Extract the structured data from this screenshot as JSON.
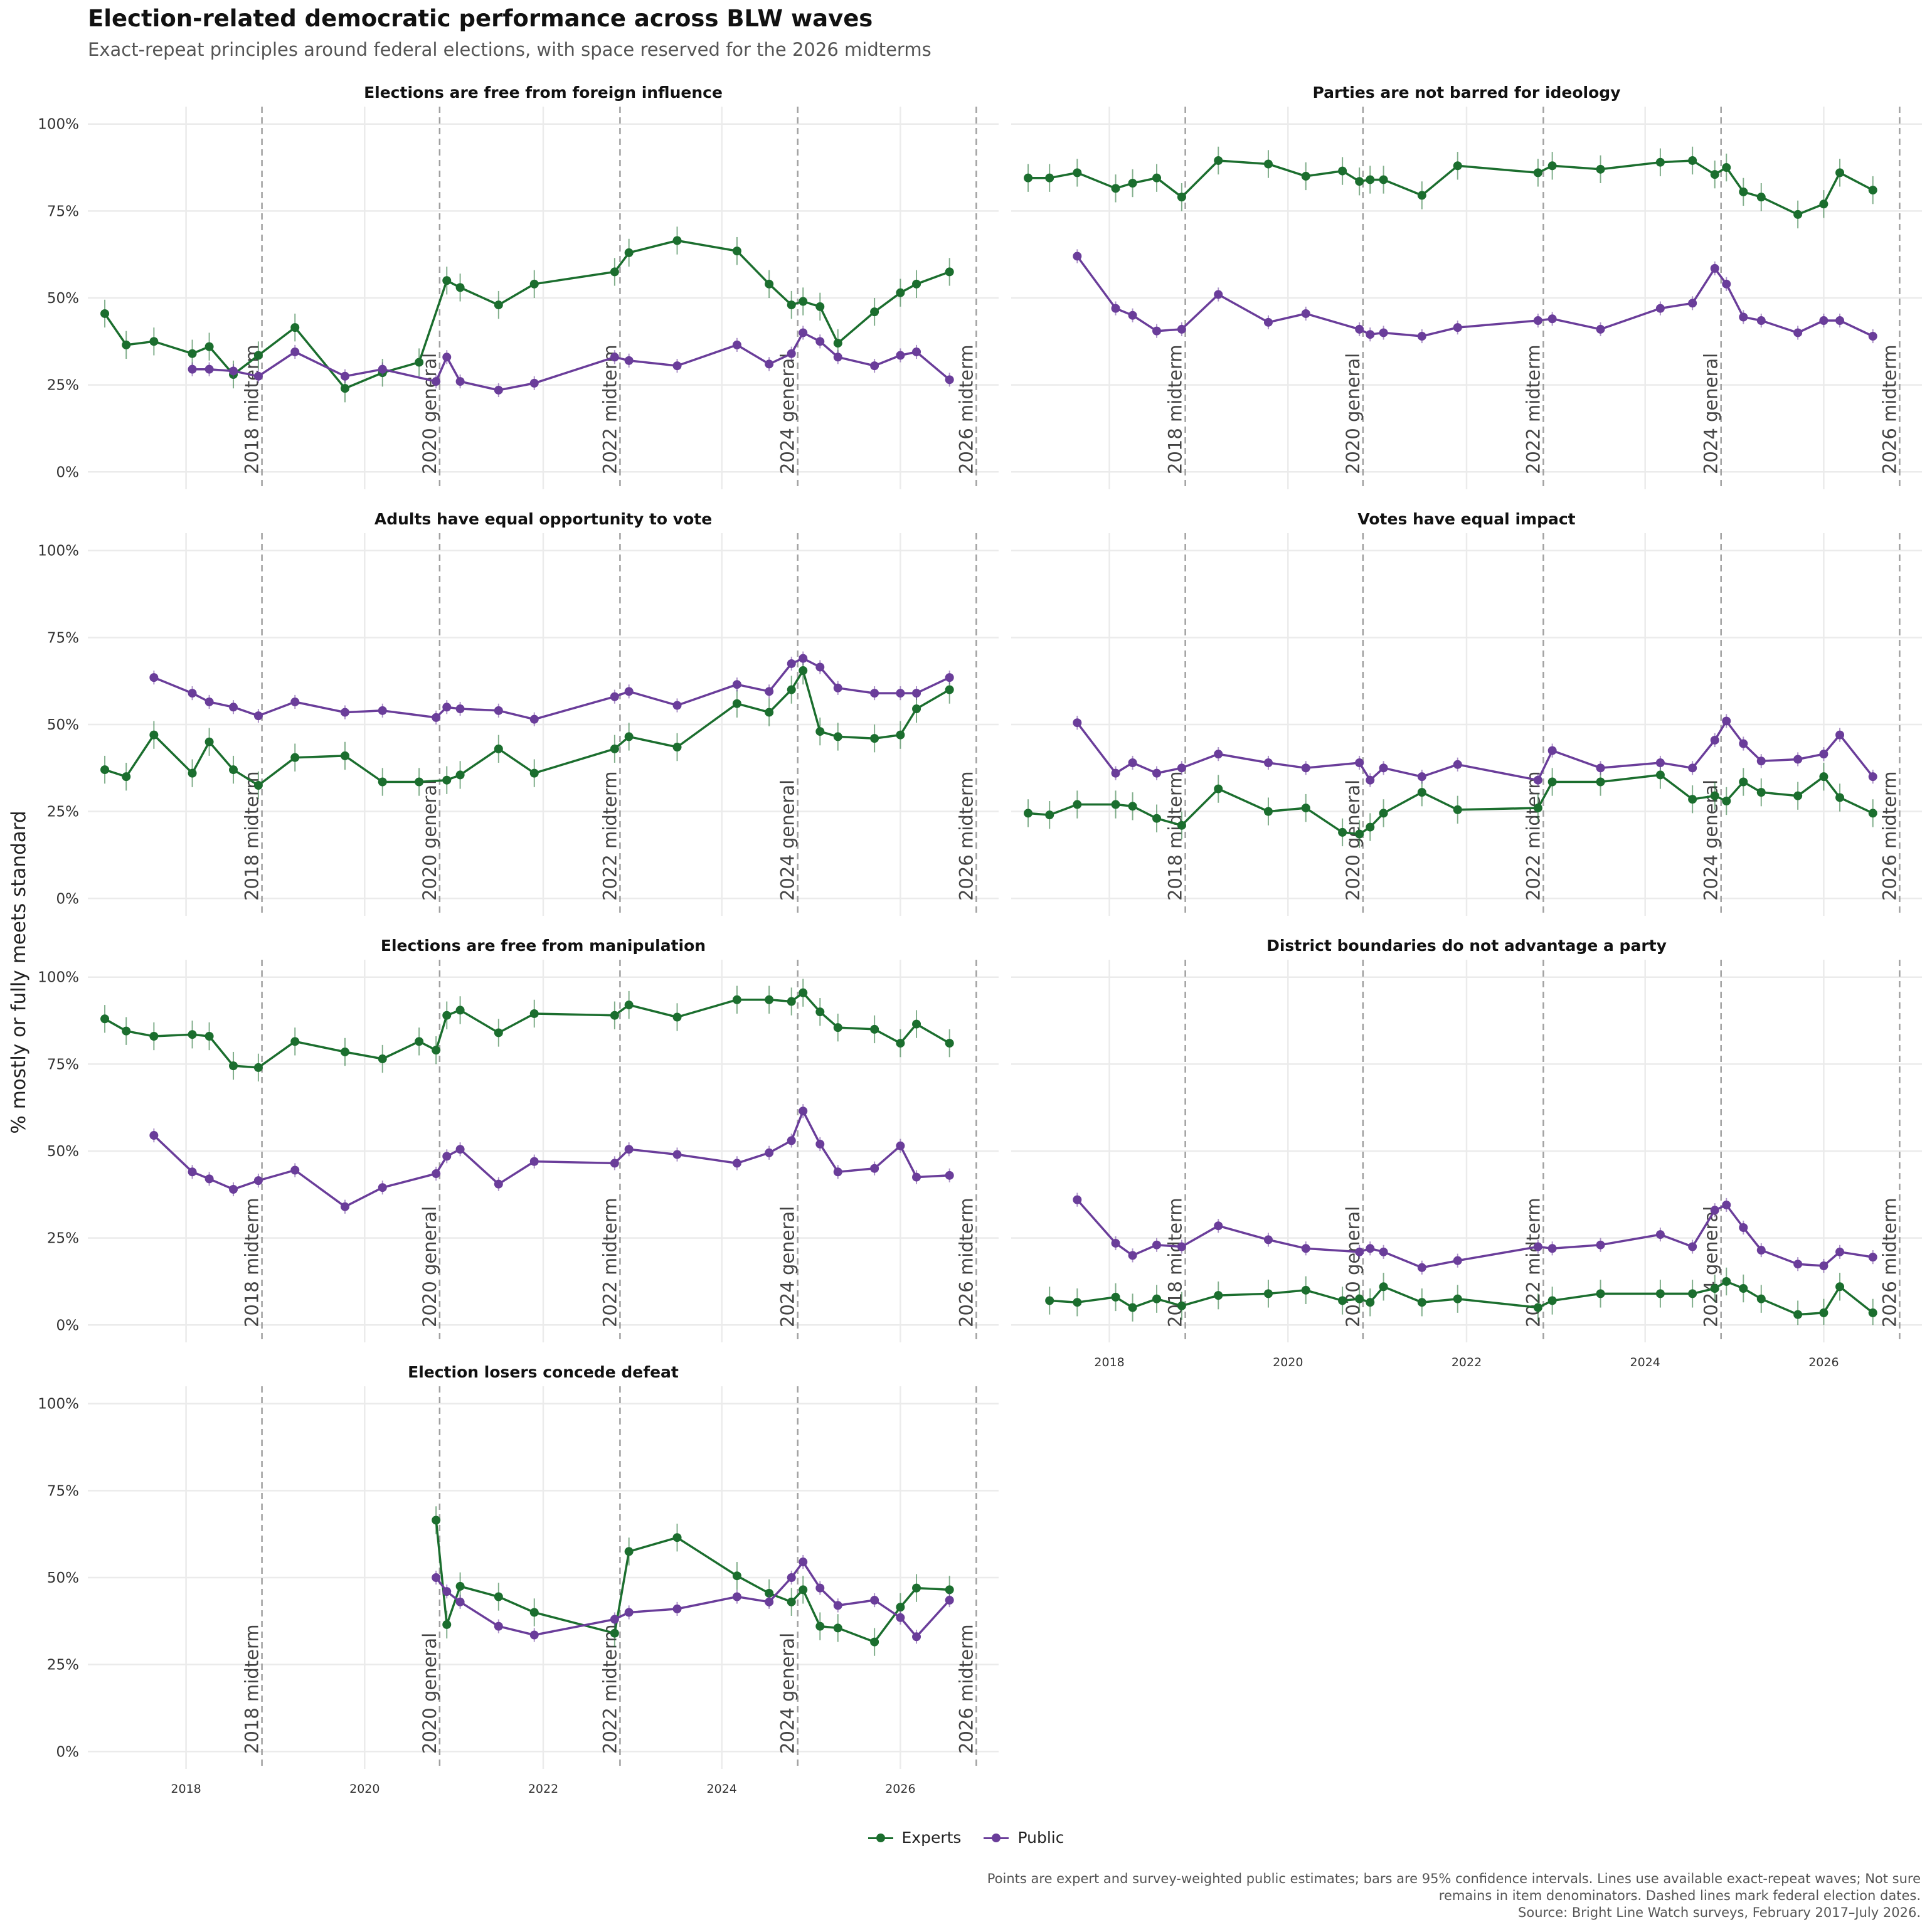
{
  "title": "Election-related democratic performance across BLW waves",
  "subtitle": "Exact-repeat principles around federal elections, with space reserved for the 2026 midterms",
  "ylabel": "% mostly or fully meets standard",
  "caption_lines": [
    "Points are expert and survey-weighted public estimates; bars are 95% confidence intervals. Lines use available exact-repeat waves; Not sure",
    "remains in item denominators. Dashed lines mark federal election dates.",
    "Source: Bright Line Watch surveys, February 2017–July 2026."
  ],
  "colors": {
    "experts": "#1b6e2e",
    "public": "#6a3d9a",
    "grid": "#ebebeb",
    "event_line": "#a0a0a0"
  },
  "chart_data": {
    "type": "line",
    "xlim": [
      2016.9,
      2027.1
    ],
    "ylim": [
      -0.05,
      1.05
    ],
    "x_ticks": [
      2018,
      2020,
      2022,
      2024,
      2026
    ],
    "y_ticks": [
      "0%",
      "25%",
      "50%",
      "75%",
      "100%"
    ],
    "y_tick_values": [
      0,
      0.25,
      0.5,
      0.75,
      1.0
    ],
    "legend": {
      "position": "bottom",
      "entries": [
        "Experts",
        "Public"
      ]
    },
    "events": [
      {
        "x": 2018.85,
        "label": "2018 midterm"
      },
      {
        "x": 2020.84,
        "label": "2020 general"
      },
      {
        "x": 2022.86,
        "label": "2022 midterm"
      },
      {
        "x": 2024.85,
        "label": "2024 general"
      },
      {
        "x": 2026.85,
        "label": "2026 midterm"
      }
    ],
    "panels": [
      {
        "title": "Elections are free from foreign influence",
        "series": [
          {
            "name": "Experts",
            "x": [
              2017.09,
              2017.33,
              2017.64,
              2018.07,
              2018.26,
              2018.53,
              2018.81,
              2019.22,
              2019.78,
              2020.2,
              2020.61,
              2020.92,
              2021.07,
              2021.5,
              2021.9,
              2022.8,
              2022.96,
              2023.5,
              2024.17,
              2024.53,
              2024.78,
              2024.91,
              2025.1,
              2025.3,
              2025.71,
              2026.0,
              2026.18,
              2026.55
            ],
            "y": [
              0.455,
              0.365,
              0.375,
              0.34,
              0.36,
              0.28,
              0.335,
              0.415,
              0.24,
              0.285,
              0.315,
              0.55,
              0.53,
              0.48,
              0.54,
              0.575,
              0.63,
              0.665,
              0.635,
              0.54,
              0.48,
              0.49,
              0.475,
              0.37,
              0.46,
              0.515,
              0.54,
              0.575
            ]
          },
          {
            "name": "Public",
            "x": [
              2018.07,
              2018.26,
              2018.53,
              2018.81,
              2019.22,
              2019.78,
              2020.2,
              2020.8,
              2020.92,
              2021.07,
              2021.5,
              2021.9,
              2022.8,
              2022.96,
              2023.5,
              2024.17,
              2024.53,
              2024.78,
              2024.91,
              2025.1,
              2025.3,
              2025.71,
              2026.0,
              2026.18,
              2026.55
            ],
            "y": [
              0.295,
              0.295,
              0.29,
              0.275,
              0.345,
              0.275,
              0.295,
              0.26,
              0.33,
              0.26,
              0.235,
              0.255,
              0.33,
              0.32,
              0.305,
              0.365,
              0.31,
              0.34,
              0.4,
              0.375,
              0.33,
              0.305,
              0.335,
              0.345,
              0.265
            ]
          }
        ]
      },
      {
        "title": "Parties are not barred for ideology",
        "series": [
          {
            "name": "Experts",
            "x": [
              2017.09,
              2017.33,
              2017.64,
              2018.07,
              2018.26,
              2018.53,
              2018.81,
              2019.22,
              2019.78,
              2020.2,
              2020.61,
              2020.8,
              2020.92,
              2021.07,
              2021.5,
              2021.9,
              2022.8,
              2022.96,
              2023.5,
              2024.17,
              2024.53,
              2024.78,
              2024.91,
              2025.1,
              2025.3,
              2025.71,
              2026.0,
              2026.18,
              2026.55
            ],
            "y": [
              0.845,
              0.845,
              0.86,
              0.815,
              0.83,
              0.845,
              0.79,
              0.895,
              0.885,
              0.85,
              0.865,
              0.835,
              0.84,
              0.84,
              0.795,
              0.88,
              0.86,
              0.88,
              0.87,
              0.89,
              0.895,
              0.855,
              0.875,
              0.805,
              0.79,
              0.74,
              0.77,
              0.86,
              0.81
            ]
          },
          {
            "name": "Public",
            "x": [
              2017.64,
              2018.07,
              2018.26,
              2018.53,
              2018.81,
              2019.22,
              2019.78,
              2020.2,
              2020.8,
              2020.92,
              2021.07,
              2021.5,
              2021.9,
              2022.8,
              2022.96,
              2023.5,
              2024.17,
              2024.53,
              2024.78,
              2024.91,
              2025.1,
              2025.3,
              2025.71,
              2026.0,
              2026.18,
              2026.55
            ],
            "y": [
              0.62,
              0.47,
              0.45,
              0.405,
              0.41,
              0.51,
              0.43,
              0.455,
              0.41,
              0.395,
              0.4,
              0.39,
              0.415,
              0.435,
              0.44,
              0.41,
              0.47,
              0.485,
              0.585,
              0.54,
              0.445,
              0.435,
              0.4,
              0.435,
              0.435,
              0.39
            ]
          }
        ]
      },
      {
        "title": "Adults have equal opportunity to vote",
        "series": [
          {
            "name": "Experts",
            "x": [
              2017.09,
              2017.33,
              2017.64,
              2018.07,
              2018.26,
              2018.53,
              2018.81,
              2019.22,
              2019.78,
              2020.2,
              2020.61,
              2020.92,
              2021.07,
              2021.5,
              2021.9,
              2022.8,
              2022.96,
              2023.5,
              2024.17,
              2024.53,
              2024.78,
              2024.91,
              2025.1,
              2025.3,
              2025.71,
              2026.0,
              2026.18,
              2026.55
            ],
            "y": [
              0.37,
              0.35,
              0.47,
              0.36,
              0.45,
              0.37,
              0.325,
              0.405,
              0.41,
              0.335,
              0.335,
              0.34,
              0.355,
              0.43,
              0.36,
              0.43,
              0.465,
              0.435,
              0.56,
              0.535,
              0.6,
              0.655,
              0.48,
              0.465,
              0.46,
              0.47,
              0.545,
              0.6
            ]
          },
          {
            "name": "Public",
            "x": [
              2017.64,
              2018.07,
              2018.26,
              2018.53,
              2018.81,
              2019.22,
              2019.78,
              2020.2,
              2020.8,
              2020.92,
              2021.07,
              2021.5,
              2021.9,
              2022.8,
              2022.96,
              2023.5,
              2024.17,
              2024.53,
              2024.78,
              2024.91,
              2025.1,
              2025.3,
              2025.71,
              2026.0,
              2026.18,
              2026.55
            ],
            "y": [
              0.635,
              0.59,
              0.565,
              0.55,
              0.525,
              0.565,
              0.535,
              0.54,
              0.52,
              0.55,
              0.545,
              0.54,
              0.515,
              0.58,
              0.595,
              0.555,
              0.615,
              0.595,
              0.675,
              0.69,
              0.665,
              0.605,
              0.59,
              0.59,
              0.59,
              0.635
            ]
          }
        ]
      },
      {
        "title": "Votes have equal impact",
        "series": [
          {
            "name": "Experts",
            "x": [
              2017.09,
              2017.33,
              2017.64,
              2018.07,
              2018.26,
              2018.53,
              2018.81,
              2019.22,
              2019.78,
              2020.2,
              2020.61,
              2020.8,
              2020.92,
              2021.07,
              2021.5,
              2021.9,
              2022.8,
              2022.96,
              2023.5,
              2024.17,
              2024.53,
              2024.78,
              2024.91,
              2025.1,
              2025.3,
              2025.71,
              2026.0,
              2026.18,
              2026.55
            ],
            "y": [
              0.245,
              0.24,
              0.27,
              0.27,
              0.265,
              0.23,
              0.21,
              0.315,
              0.25,
              0.26,
              0.19,
              0.185,
              0.205,
              0.245,
              0.305,
              0.255,
              0.26,
              0.335,
              0.335,
              0.355,
              0.285,
              0.295,
              0.28,
              0.335,
              0.305,
              0.295,
              0.35,
              0.29,
              0.245
            ]
          },
          {
            "name": "Public",
            "x": [
              2017.64,
              2018.07,
              2018.26,
              2018.53,
              2018.81,
              2019.22,
              2019.78,
              2020.2,
              2020.8,
              2020.92,
              2021.07,
              2021.5,
              2021.9,
              2022.8,
              2022.96,
              2023.5,
              2024.17,
              2024.53,
              2024.78,
              2024.91,
              2025.1,
              2025.3,
              2025.71,
              2026.0,
              2026.18,
              2026.55
            ],
            "y": [
              0.505,
              0.36,
              0.39,
              0.36,
              0.375,
              0.415,
              0.39,
              0.375,
              0.39,
              0.34,
              0.375,
              0.35,
              0.385,
              0.34,
              0.425,
              0.375,
              0.39,
              0.375,
              0.455,
              0.51,
              0.445,
              0.395,
              0.4,
              0.415,
              0.47,
              0.35
            ]
          }
        ]
      },
      {
        "title": "Elections are free from manipulation",
        "series": [
          {
            "name": "Experts",
            "x": [
              2017.09,
              2017.33,
              2017.64,
              2018.07,
              2018.26,
              2018.53,
              2018.81,
              2019.22,
              2019.78,
              2020.2,
              2020.61,
              2020.8,
              2020.92,
              2021.07,
              2021.5,
              2021.9,
              2022.8,
              2022.96,
              2023.5,
              2024.17,
              2024.53,
              2024.78,
              2024.91,
              2025.1,
              2025.3,
              2025.71,
              2026.0,
              2026.18,
              2026.55
            ],
            "y": [
              0.88,
              0.845,
              0.83,
              0.835,
              0.83,
              0.745,
              0.74,
              0.815,
              0.785,
              0.765,
              0.815,
              0.79,
              0.89,
              0.905,
              0.84,
              0.895,
              0.89,
              0.92,
              0.885,
              0.935,
              0.935,
              0.93,
              0.955,
              0.9,
              0.855,
              0.85,
              0.81,
              0.865,
              0.81
            ]
          },
          {
            "name": "Public",
            "x": [
              2017.64,
              2018.07,
              2018.26,
              2018.53,
              2018.81,
              2019.22,
              2019.78,
              2020.2,
              2020.8,
              2020.92,
              2021.07,
              2021.5,
              2021.9,
              2022.8,
              2022.96,
              2023.5,
              2024.17,
              2024.53,
              2024.78,
              2024.91,
              2025.1,
              2025.3,
              2025.71,
              2026.0,
              2026.18,
              2026.55
            ],
            "y": [
              0.545,
              0.44,
              0.42,
              0.39,
              0.415,
              0.445,
              0.34,
              0.395,
              0.435,
              0.485,
              0.505,
              0.405,
              0.47,
              0.465,
              0.505,
              0.49,
              0.465,
              0.495,
              0.53,
              0.615,
              0.52,
              0.44,
              0.45,
              0.515,
              0.425,
              0.43
            ]
          }
        ]
      },
      {
        "title": "District boundaries do not advantage a party",
        "series": [
          {
            "name": "Experts",
            "x": [
              2017.33,
              2017.64,
              2018.07,
              2018.26,
              2018.53,
              2018.81,
              2019.22,
              2019.78,
              2020.2,
              2020.61,
              2020.8,
              2020.92,
              2021.07,
              2021.5,
              2021.9,
              2022.8,
              2022.96,
              2023.5,
              2024.17,
              2024.53,
              2024.78,
              2024.91,
              2025.1,
              2025.3,
              2025.71,
              2026.0,
              2026.18,
              2026.55
            ],
            "y": [
              0.07,
              0.065,
              0.08,
              0.05,
              0.075,
              0.055,
              0.085,
              0.09,
              0.1,
              0.07,
              0.075,
              0.065,
              0.11,
              0.065,
              0.075,
              0.05,
              0.07,
              0.09,
              0.09,
              0.09,
              0.105,
              0.125,
              0.105,
              0.075,
              0.03,
              0.035,
              0.11,
              0.035
            ]
          },
          {
            "name": "Public",
            "x": [
              2017.64,
              2018.07,
              2018.26,
              2018.53,
              2018.81,
              2019.22,
              2019.78,
              2020.2,
              2020.8,
              2020.92,
              2021.07,
              2021.5,
              2021.9,
              2022.8,
              2022.96,
              2023.5,
              2024.17,
              2024.53,
              2024.78,
              2024.91,
              2025.1,
              2025.3,
              2025.71,
              2026.0,
              2026.18,
              2026.55
            ],
            "y": [
              0.36,
              0.235,
              0.2,
              0.23,
              0.225,
              0.285,
              0.245,
              0.22,
              0.21,
              0.22,
              0.21,
              0.165,
              0.185,
              0.225,
              0.22,
              0.23,
              0.26,
              0.225,
              0.33,
              0.345,
              0.28,
              0.215,
              0.175,
              0.17,
              0.21,
              0.195
            ]
          }
        ]
      },
      {
        "title": "Election losers concede defeat",
        "series": [
          {
            "name": "Experts",
            "x": [
              2020.8,
              2020.92,
              2021.07,
              2021.5,
              2021.9,
              2022.8,
              2022.96,
              2023.5,
              2024.17,
              2024.53,
              2024.78,
              2024.91,
              2025.1,
              2025.3,
              2025.71,
              2026.0,
              2026.18,
              2026.55
            ],
            "y": [
              0.665,
              0.365,
              0.475,
              0.445,
              0.4,
              0.34,
              0.575,
              0.615,
              0.505,
              0.455,
              0.43,
              0.465,
              0.36,
              0.355,
              0.315,
              0.415,
              0.47,
              0.465
            ]
          },
          {
            "name": "Public",
            "x": [
              2020.8,
              2020.92,
              2021.07,
              2021.5,
              2021.9,
              2022.8,
              2022.96,
              2023.5,
              2024.17,
              2024.53,
              2024.78,
              2024.91,
              2025.1,
              2025.3,
              2025.71,
              2026.0,
              2026.18,
              2026.55
            ],
            "y": [
              0.5,
              0.46,
              0.43,
              0.36,
              0.335,
              0.38,
              0.4,
              0.41,
              0.445,
              0.43,
              0.5,
              0.545,
              0.47,
              0.42,
              0.435,
              0.385,
              0.33,
              0.435
            ]
          }
        ]
      }
    ]
  }
}
